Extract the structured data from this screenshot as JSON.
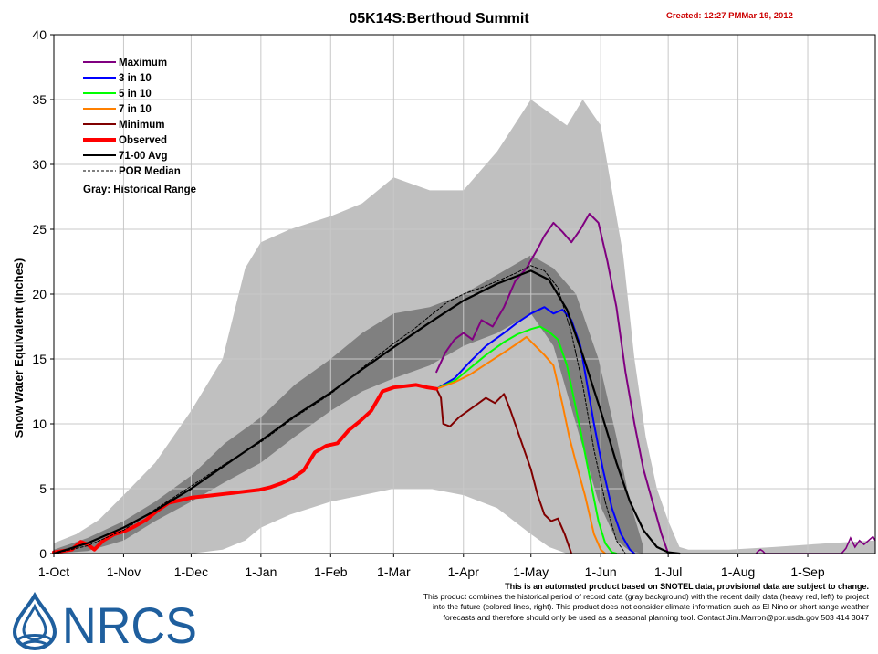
{
  "chart_data": {
    "type": "line",
    "title": "05K14S:Berthoud Summit",
    "created": "Created: 12:27 PMMar 19, 2012",
    "ylabel": "Snow Water Equivalent (inches)",
    "xlabel": "",
    "ylim": [
      0,
      40
    ],
    "xlim_day_of_water_year": [
      0,
      365
    ],
    "yticks": [
      0,
      5,
      10,
      15,
      20,
      25,
      30,
      35,
      40
    ],
    "x_tick_labels": [
      "1-Oct",
      "1-Nov",
      "1-Dec",
      "1-Jan",
      "1-Feb",
      "1-Mar",
      "1-Apr",
      "1-May",
      "1-Jun",
      "1-Jul",
      "1-Aug",
      "1-Sep"
    ],
    "x_tick_days": [
      0,
      31,
      61,
      92,
      123,
      151,
      182,
      212,
      243,
      273,
      304,
      335
    ],
    "grid": true,
    "legend_position": "top-left",
    "legend_note": "Gray: Historical Range",
    "x_units_note": "x values are day of water year (0 = 1-Oct)",
    "colors": {
      "range_light": "#c0c0c0",
      "range_dark": "#808080",
      "maximum": "#800080",
      "p30": "#0000ff",
      "p50": "#00ff00",
      "p70": "#ff8000",
      "minimum": "#800000",
      "observed": "#ff0000",
      "avg": "#000000",
      "median": "#000000",
      "created": "#cc0000",
      "grid": "#c8c8c8"
    },
    "historical_range": {
      "x": [
        0,
        10,
        20,
        31,
        45,
        61,
        75,
        85,
        92,
        105,
        123,
        137,
        151,
        167,
        182,
        197,
        212,
        220,
        228,
        235,
        243,
        253,
        258,
        263,
        268,
        273,
        278,
        282,
        290,
        300,
        320,
        345,
        365
      ],
      "max": [
        0.8,
        1.5,
        2.6,
        4.5,
        7,
        11,
        15,
        22,
        24,
        25,
        26,
        27,
        29,
        28,
        28,
        31,
        35,
        34,
        33,
        35,
        33,
        23,
        15,
        9,
        5,
        2.5,
        0.5,
        0.3,
        0.3,
        0.3,
        0.5,
        0.8,
        1
      ],
      "min": [
        0,
        0,
        0,
        0,
        0,
        0,
        0.3,
        1,
        2,
        3,
        4,
        4.5,
        5,
        5,
        4.5,
        3.5,
        1.5,
        0.5,
        0,
        0,
        0,
        0,
        0,
        0,
        0,
        0,
        0,
        0,
        0,
        0,
        0,
        0,
        0
      ]
    },
    "interquartile": {
      "x": [
        0,
        15,
        31,
        45,
        61,
        76,
        92,
        107,
        123,
        137,
        151,
        167,
        182,
        197,
        212,
        222,
        232,
        242,
        250,
        256,
        262
      ],
      "upper": [
        0.3,
        1.2,
        2.5,
        4,
        6,
        8.5,
        10.5,
        13,
        15,
        17,
        18.5,
        19,
        20,
        21.5,
        23,
        22,
        20,
        15,
        9,
        4,
        0.5
      ],
      "lower": [
        0,
        0.2,
        1,
        2.5,
        4,
        5.5,
        7,
        9,
        11,
        12.5,
        13.5,
        14.5,
        16,
        17,
        18.5,
        16,
        10,
        4,
        1,
        0.2,
        0
      ]
    },
    "series": [
      {
        "name": "Maximum",
        "color": "#800080",
        "width": 2,
        "x": [
          170,
          174,
          178,
          182,
          186,
          190,
          195,
          200,
          205,
          210,
          215,
          218,
          222,
          226,
          230,
          234,
          238,
          242,
          246,
          250,
          254,
          258,
          262,
          266,
          270,
          273
        ],
        "y": [
          14,
          15.5,
          16.5,
          17,
          16.5,
          18,
          17.5,
          19,
          21,
          22,
          23.5,
          24.5,
          25.5,
          24.8,
          24,
          25,
          26.2,
          25.5,
          22.5,
          19,
          14,
          10,
          6.5,
          4,
          1.5,
          0
        ]
      },
      {
        "name": "3 in 10",
        "color": "#0000ff",
        "width": 2,
        "x": [
          170,
          178,
          185,
          192,
          200,
          206,
          212,
          218,
          222,
          226,
          230,
          234,
          237,
          240,
          244,
          248,
          252,
          256,
          258
        ],
        "y": [
          12.7,
          13.5,
          14.8,
          16,
          17,
          17.8,
          18.5,
          19,
          18.5,
          18.8,
          18,
          16,
          13,
          10,
          6.5,
          3.5,
          1.5,
          0.3,
          0
        ]
      },
      {
        "name": "5 in 10",
        "color": "#00ff00",
        "width": 2,
        "x": [
          170,
          178,
          185,
          192,
          200,
          206,
          212,
          216,
          220,
          224,
          228,
          231,
          234,
          238,
          242,
          245,
          248,
          250
        ],
        "y": [
          12.7,
          13.3,
          14.3,
          15.3,
          16.3,
          16.9,
          17.3,
          17.5,
          17.1,
          16.5,
          14.5,
          12,
          9.5,
          6,
          2.5,
          0.8,
          0.1,
          0
        ]
      },
      {
        "name": "7 in 10",
        "color": "#ff8000",
        "width": 2,
        "x": [
          170,
          178,
          185,
          192,
          200,
          206,
          210,
          214,
          218,
          222,
          226,
          229,
          232,
          236,
          240,
          243,
          245
        ],
        "y": [
          12.7,
          13.2,
          13.8,
          14.6,
          15.5,
          16.2,
          16.7,
          16,
          15.3,
          14.5,
          11.5,
          9,
          7,
          4.5,
          1.5,
          0.3,
          0
        ]
      },
      {
        "name": "Minimum",
        "color": "#800000",
        "width": 2,
        "x": [
          170,
          172,
          173,
          176,
          180,
          184,
          188,
          192,
          196,
          200,
          203,
          206,
          209,
          212,
          215,
          218,
          221,
          224,
          227,
          230
        ],
        "y": [
          12.7,
          12,
          10,
          9.8,
          10.5,
          11,
          11.5,
          12,
          11.6,
          12.3,
          11,
          9.5,
          8,
          6.5,
          4.5,
          3,
          2.5,
          2.7,
          1.5,
          0
        ]
      },
      {
        "name": "Observed",
        "color": "#ff0000",
        "width": 4,
        "x": [
          0,
          8,
          12,
          15,
          18,
          22,
          27,
          31,
          36,
          41,
          46,
          51,
          56,
          61,
          66,
          71,
          76,
          81,
          86,
          91,
          96,
          101,
          106,
          111,
          116,
          121,
          126,
          131,
          136,
          141,
          146,
          151,
          156,
          161,
          166,
          170
        ],
        "y": [
          0.1,
          0.3,
          0.9,
          0.7,
          0.3,
          1,
          1.5,
          1.7,
          2.1,
          2.6,
          3.3,
          3.9,
          4.1,
          4.3,
          4.4,
          4.5,
          4.6,
          4.7,
          4.8,
          4.9,
          5.1,
          5.4,
          5.8,
          6.4,
          7.8,
          8.3,
          8.5,
          9.5,
          10.2,
          11,
          12.5,
          12.8,
          12.9,
          13,
          12.8,
          12.7
        ]
      },
      {
        "name": "71-00 Avg",
        "color": "#000000",
        "width": 2.2,
        "x": [
          0,
          15,
          31,
          45,
          61,
          76,
          92,
          107,
          123,
          137,
          151,
          167,
          182,
          197,
          212,
          220,
          228,
          235,
          243,
          250,
          256,
          262,
          268,
          273,
          278
        ],
        "y": [
          0,
          0.8,
          2,
          3.3,
          5,
          6.8,
          8.7,
          10.6,
          12.4,
          14.2,
          15.9,
          17.8,
          19.5,
          20.8,
          21.8,
          21.1,
          18.8,
          15.3,
          11,
          7,
          4,
          1.8,
          0.5,
          0.1,
          0
        ]
      },
      {
        "name": "POR Median",
        "color": "#000000",
        "width": 1,
        "dash": "3,2",
        "x": [
          0,
          15,
          31,
          45,
          61,
          76,
          92,
          107,
          123,
          137,
          151,
          160,
          167,
          175,
          182,
          190,
          197,
          205,
          212,
          218,
          224,
          230,
          235,
          240,
          245,
          250,
          254
        ],
        "y": [
          0,
          0.6,
          1.8,
          3.4,
          5.2,
          6.9,
          8.6,
          10.5,
          12.3,
          14.3,
          16.2,
          17.3,
          18.3,
          19.4,
          20,
          20.5,
          21,
          21.6,
          22.2,
          21.8,
          20.5,
          17,
          13,
          8,
          4,
          1,
          0
        ]
      }
    ],
    "tail_max_segment": {
      "x": [
        312,
        313,
        314,
        315,
        316,
        350,
        352,
        354,
        356,
        358,
        360,
        362,
        364,
        365
      ],
      "y": [
        0,
        0.2,
        0.3,
        0.2,
        0,
        0,
        0.4,
        1.2,
        0.5,
        1,
        0.7,
        1,
        1.3,
        1
      ]
    },
    "legend": [
      {
        "name": "Maximum",
        "color": "#800080",
        "width": 2
      },
      {
        "name": "3 in 10",
        "color": "#0000ff",
        "width": 2
      },
      {
        "name": "5 in 10",
        "color": "#00ff00",
        "width": 2
      },
      {
        "name": "7 in 10",
        "color": "#ff8000",
        "width": 2
      },
      {
        "name": "Minimum",
        "color": "#800000",
        "width": 2
      },
      {
        "name": "Observed",
        "color": "#ff0000",
        "width": 4
      },
      {
        "name": "71-00 Avg",
        "color": "#000000",
        "width": 2
      },
      {
        "name": "POR Median",
        "color": "#000000",
        "width": 1,
        "dash": "3,2"
      }
    ]
  },
  "footer": {
    "line1": "This is an automated product based on SNOTEL data, provisional data are subject to change.",
    "line2": "This product combines the historical period of record data (gray background) with the recent daily data (heavy red, left) to project",
    "line3": "into the future (colored lines, right). This product does not consider climate information such as El Nino or short range weather",
    "line4": "forecasts and therefore should only be used as a seasonal planning tool. Contact Jim.Marron@por.usda.gov 503 414 3047"
  },
  "logo": {
    "text": "NRCS",
    "color": "#1f5f9e"
  }
}
